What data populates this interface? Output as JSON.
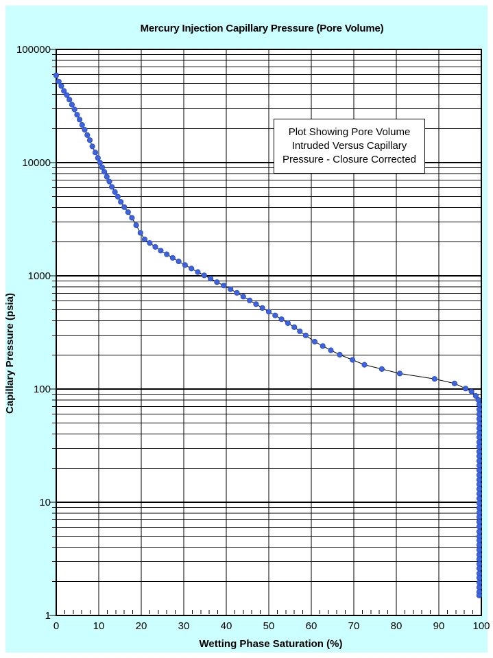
{
  "colors": {
    "panel_background": "#CCFFFF",
    "plot_background": "#FFFFFF",
    "grid": "#000000",
    "marker_fill": "#3D64DB",
    "marker_edge": "#2F4FC7",
    "line": "#000000",
    "text": "#000000"
  },
  "chart_data": {
    "type": "scatter",
    "title": "Mercury Injection Capillary Pressure (Pore Volume)",
    "xlabel": "Wetting Phase Saturation (%)",
    "ylabel": "Capillary Pressure (psia)",
    "x_axis": {
      "min": 0,
      "max": 100,
      "tick_values": [
        0,
        10,
        20,
        30,
        40,
        50,
        60,
        70,
        80,
        90,
        100
      ],
      "tick_labels": [
        "0",
        "10",
        "20",
        "30",
        "40",
        "50",
        "60",
        "70",
        "80",
        "90",
        "100"
      ],
      "minor_tick_step": 2
    },
    "y_axis": {
      "scale": "log",
      "min": 1,
      "max": 100000,
      "tick_values": [
        1,
        10,
        100,
        1000,
        10000,
        100000
      ],
      "tick_labels": [
        "1",
        "10",
        "100",
        "1000",
        "10000",
        "100000"
      ]
    },
    "grid": {
      "vertical_major": true,
      "horizontal_major": true,
      "horizontal_log_minor": true
    },
    "legend": "none",
    "annotation": {
      "lines": [
        "Plot Showing Pore Volume",
        "Intruded Versus Capillary",
        "Pressure - Closure Corrected"
      ]
    },
    "series": [
      {
        "points": [
          [
            0,
            59000
          ],
          [
            0.6,
            52000
          ],
          [
            1.2,
            47500
          ],
          [
            1.8,
            43000
          ],
          [
            2.5,
            39500
          ],
          [
            3.1,
            36000
          ],
          [
            3.7,
            32500
          ],
          [
            4.3,
            29500
          ],
          [
            4.9,
            26500
          ],
          [
            5.5,
            24000
          ],
          [
            6.1,
            21500
          ],
          [
            6.7,
            19500
          ],
          [
            7.3,
            17500
          ],
          [
            7.9,
            15800
          ],
          [
            8.5,
            13900
          ],
          [
            9.2,
            12300
          ],
          [
            9.8,
            11000
          ],
          [
            10.3,
            10000
          ],
          [
            10.8,
            9100
          ],
          [
            11.3,
            8300
          ],
          [
            11.9,
            7500
          ],
          [
            12.5,
            6800
          ],
          [
            13.1,
            6100
          ],
          [
            13.8,
            5500
          ],
          [
            14.5,
            5000
          ],
          [
            15.2,
            4500
          ],
          [
            16,
            4050
          ],
          [
            16.9,
            3650
          ],
          [
            17.8,
            3250
          ],
          [
            18.8,
            2800
          ],
          [
            19.8,
            2400
          ],
          [
            20.8,
            2100
          ],
          [
            22,
            1950
          ],
          [
            23.3,
            1800
          ],
          [
            24.6,
            1670
          ],
          [
            26,
            1550
          ],
          [
            27.4,
            1440
          ],
          [
            28.8,
            1340
          ],
          [
            30.3,
            1245
          ],
          [
            31.8,
            1160
          ],
          [
            33.3,
            1080
          ],
          [
            34.8,
            1010
          ],
          [
            36.3,
            945
          ],
          [
            37.8,
            880
          ],
          [
            39.4,
            820
          ],
          [
            41,
            762
          ],
          [
            42.5,
            707
          ],
          [
            44,
            655
          ],
          [
            45.5,
            607
          ],
          [
            47,
            562
          ],
          [
            48.5,
            520
          ],
          [
            50,
            482
          ],
          [
            51.5,
            447
          ],
          [
            53,
            414
          ],
          [
            54.5,
            382
          ],
          [
            56,
            352
          ],
          [
            57.3,
            324
          ],
          [
            58.7,
            298
          ],
          [
            60.8,
            262
          ],
          [
            62.7,
            240
          ],
          [
            64.6,
            220
          ],
          [
            66.7,
            201
          ],
          [
            69.7,
            181
          ],
          [
            72.5,
            164
          ],
          [
            76.6,
            150
          ],
          [
            80.8,
            137
          ],
          [
            89,
            123
          ],
          [
            93.7,
            112
          ],
          [
            96.3,
            101
          ],
          [
            97.7,
            95
          ],
          [
            98.7,
            87
          ],
          [
            99.3,
            80
          ],
          [
            99.5,
            73
          ],
          [
            99.5,
            66
          ],
          [
            99.5,
            60
          ],
          [
            99.5,
            54.5
          ],
          [
            99.5,
            49.5
          ],
          [
            99.5,
            45
          ],
          [
            99.5,
            41
          ],
          [
            99.5,
            37.5
          ],
          [
            99.5,
            34
          ],
          [
            99.5,
            31
          ],
          [
            99.5,
            28
          ],
          [
            99.5,
            25.5
          ],
          [
            99.5,
            23.2
          ],
          [
            99.5,
            21.1
          ],
          [
            99.5,
            19.2
          ],
          [
            99.5,
            17.4
          ],
          [
            99.5,
            15.8
          ],
          [
            99.5,
            14.4
          ],
          [
            99.5,
            13.1
          ],
          [
            99.5,
            11.9
          ],
          [
            99.5,
            10.8
          ],
          [
            99.5,
            9.8
          ],
          [
            99.5,
            8.9
          ],
          [
            99.5,
            8.1
          ],
          [
            99.5,
            7.4
          ],
          [
            99.5,
            6.7
          ],
          [
            99.5,
            6.1
          ],
          [
            99.5,
            5.5
          ],
          [
            99.5,
            5.0
          ],
          [
            99.5,
            4.6
          ],
          [
            99.5,
            4.2
          ],
          [
            99.5,
            3.8
          ],
          [
            99.5,
            3.45
          ],
          [
            99.5,
            3.15
          ],
          [
            99.5,
            2.85
          ],
          [
            99.5,
            2.6
          ],
          [
            99.5,
            2.35
          ],
          [
            99.5,
            2.15
          ],
          [
            99.5,
            1.95
          ],
          [
            99.5,
            1.77
          ],
          [
            99.5,
            1.61
          ],
          [
            99.5,
            1.5
          ]
        ]
      }
    ]
  }
}
